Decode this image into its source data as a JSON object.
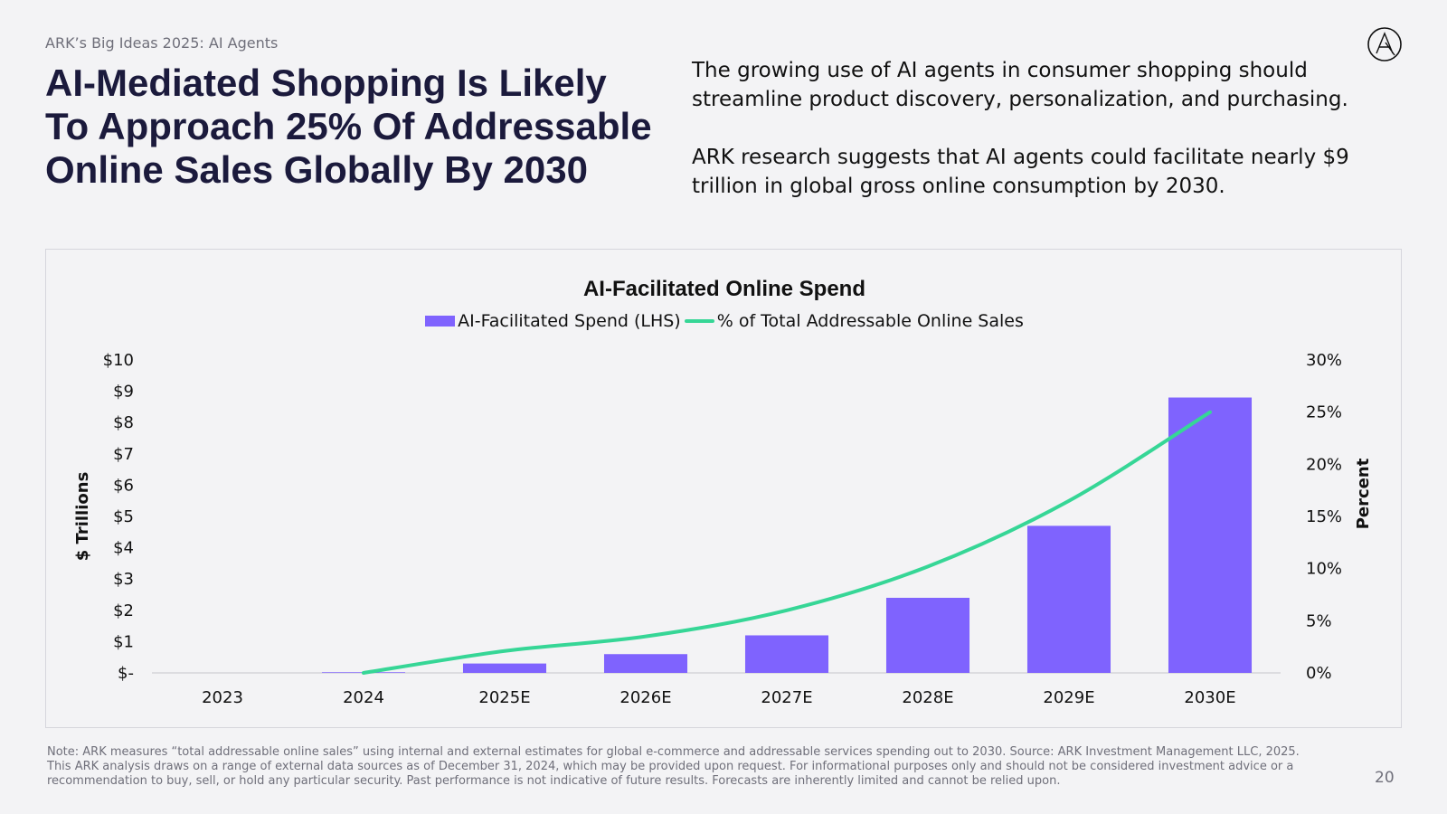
{
  "header": {
    "kicker": "ARK’s Big Ideas 2025: AI Agents",
    "headline_lines": [
      "AI-Mediated Shopping Is Likely",
      "To Approach 25% Of Addressable",
      "Online Sales Globally By 2030"
    ],
    "paragraphs": [
      "The growing use of AI agents in consumer shopping should streamline product discovery, personalization, and purchasing.",
      "ARK research suggests that AI agents could facilitate nearly $9 trillion in global gross online consumption by 2030."
    ]
  },
  "chart_data": {
    "type": "bar",
    "title": "AI-Facilitated Online Spend",
    "categories": [
      "2023",
      "2024",
      "2025E",
      "2026E",
      "2027E",
      "2028E",
      "2029E",
      "2030E"
    ],
    "series": [
      {
        "name": "AI-Facilitated Spend (LHS)",
        "type": "bar",
        "axis": "left",
        "values": [
          0,
          0.02,
          0.3,
          0.6,
          1.2,
          2.4,
          4.7,
          8.8
        ]
      },
      {
        "name": "% of Total Addressable Online Sales",
        "type": "line",
        "axis": "right",
        "values": [
          null,
          0,
          2.1,
          3.5,
          6,
          10.2,
          16.5,
          25
        ]
      }
    ],
    "ylabel": "$ Trillions",
    "ylabel_right": "Percent",
    "ylim": [
      0,
      10
    ],
    "ylim_right": [
      0,
      30
    ],
    "yticks_left": [
      "$-",
      "$1",
      "$2",
      "$3",
      "$4",
      "$5",
      "$6",
      "$7",
      "$8",
      "$9",
      "$10"
    ],
    "yticks_right": [
      "0%",
      "5%",
      "10%",
      "15%",
      "20%",
      "25%",
      "30%"
    ],
    "legend_position": "top-center",
    "grid": false,
    "colors": {
      "bar": "#7f63fe",
      "line": "#36d696"
    }
  },
  "footer": {
    "lines": [
      "Note: ARK measures “total addressable online sales” using internal and external estimates for global e-commerce and addressable services spending out to 2030. Source: ARK Investment Management LLC, 2025.",
      "This ARK analysis draws on a range of external data sources as of December 31, 2024, which may be provided upon request. For informational purposes only and should not be considered investment advice or a",
      "recommendation to buy, sell, or hold any particular security. Past performance is not indicative of future results. Forecasts are inherently limited and cannot be relied upon."
    ],
    "page_number": "20"
  },
  "colors": {
    "headline": "#1b1a3c",
    "background": "#f3f3f5",
    "muted": "#6f6f7a"
  }
}
